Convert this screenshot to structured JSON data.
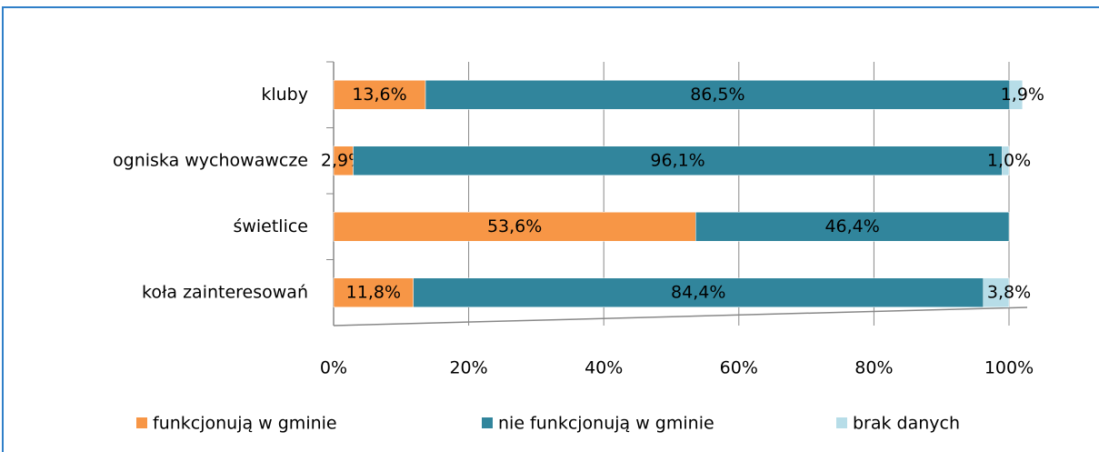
{
  "chart_data": {
    "type": "stacked-barh",
    "categories": [
      "kluby",
      "ogniska wychowawcze",
      "świetlice",
      "koła zainteresowań"
    ],
    "series": [
      {
        "name": "funkcjonują w gminie",
        "color": "#f79646",
        "values": [
          13.6,
          2.9,
          53.6,
          11.8
        ],
        "value_labels": [
          "13,6%",
          "2,9%",
          "53,6%",
          "11,8%"
        ]
      },
      {
        "name": "nie funkcjonują w gminie",
        "color": "#31859c",
        "values": [
          86.5,
          96.1,
          46.4,
          84.4
        ],
        "value_labels": [
          "86,5%",
          "96,1%",
          "46,4%",
          "84,4%"
        ]
      },
      {
        "name": "brak danych",
        "color": "#b7dde8",
        "values": [
          1.9,
          1.0,
          0,
          3.8
        ],
        "value_labels": [
          "1,9%",
          "1,0%",
          null,
          "3,8%"
        ]
      }
    ],
    "xlim": [
      0,
      100
    ],
    "xticks": [
      {
        "value": 0,
        "label": "0%"
      },
      {
        "value": 20,
        "label": "20%"
      },
      {
        "value": 40,
        "label": "40%"
      },
      {
        "value": 60,
        "label": "60%"
      },
      {
        "value": 80,
        "label": "80%"
      },
      {
        "value": 100,
        "label": "100%"
      }
    ],
    "grid": true,
    "legend": "bottom"
  }
}
